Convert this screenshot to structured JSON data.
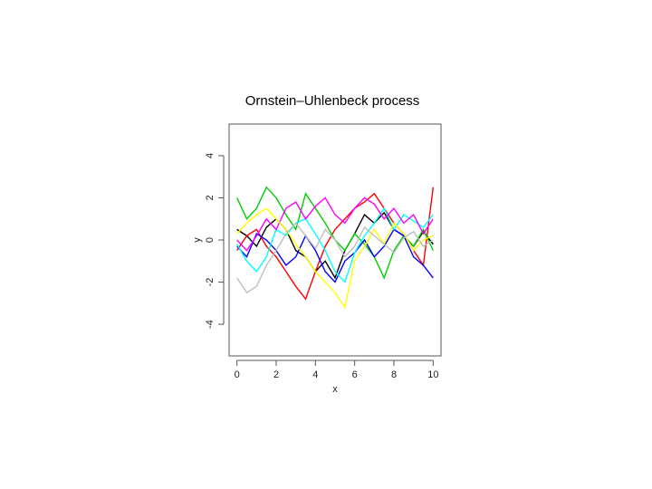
{
  "chart_data": {
    "type": "line",
    "title": "Ornstein–Uhlenbeck process",
    "x_label": "x",
    "y_label": "y",
    "x": [
      0,
      0.5,
      1,
      1.5,
      2,
      2.5,
      3,
      3.5,
      4,
      4.5,
      5,
      5.5,
      6,
      6.5,
      7,
      7.5,
      8,
      8.5,
      9,
      9.5,
      10
    ],
    "series": [
      {
        "color": "#000000",
        "values": [
          0.5,
          0.2,
          -0.3,
          0.6,
          1.0,
          0.5,
          -0.5,
          -0.8,
          -1.5,
          -1.0,
          -1.8,
          -0.5,
          0.3,
          1.2,
          0.8,
          1.3,
          0.5,
          0.2,
          -0.3,
          0.4,
          -0.2
        ]
      },
      {
        "color": "#ff0000",
        "values": [
          -0.5,
          0.2,
          0.5,
          -0.3,
          -0.8,
          -1.5,
          -2.2,
          -2.8,
          -1.5,
          -0.3,
          0.5,
          1.0,
          1.5,
          1.8,
          2.2,
          1.5,
          0.8,
          0.3,
          -0.5,
          -1.2,
          2.5
        ]
      },
      {
        "color": "#00cd00",
        "values": [
          2.0,
          1.0,
          1.5,
          2.5,
          2.0,
          1.2,
          0.5,
          2.2,
          1.5,
          0.8,
          0.0,
          -0.5,
          0.3,
          -0.2,
          -0.8,
          -1.8,
          -0.5,
          0.2,
          -0.3,
          0.5,
          -0.5
        ]
      },
      {
        "color": "#0000ff",
        "values": [
          -0.3,
          -0.8,
          0.3,
          0.0,
          -0.5,
          -1.2,
          -0.8,
          0.2,
          -0.5,
          -1.5,
          -2.0,
          -1.0,
          -0.6,
          0.0,
          -0.8,
          -0.3,
          0.5,
          0.2,
          -0.8,
          -1.2,
          -1.8
        ]
      },
      {
        "color": "#00ffff",
        "values": [
          -0.2,
          -1.0,
          -1.5,
          -0.8,
          0.5,
          0.2,
          0.8,
          1.0,
          0.3,
          -0.5,
          -1.5,
          -2.0,
          -0.6,
          0.2,
          0.8,
          1.5,
          0.5,
          1.2,
          0.9,
          0.6,
          1.2
        ]
      },
      {
        "color": "#ff00ff",
        "values": [
          0.0,
          -0.5,
          0.2,
          1.0,
          0.5,
          1.5,
          1.8,
          1.0,
          1.6,
          2.0,
          1.2,
          0.8,
          1.5,
          2.0,
          1.7,
          1.0,
          1.5,
          0.8,
          1.2,
          0.3,
          1.0
        ]
      },
      {
        "color": "#ffff00",
        "values": [
          0.3,
          0.8,
          1.2,
          1.5,
          1.0,
          0.5,
          -0.2,
          -0.8,
          -1.5,
          -2.0,
          -2.5,
          -3.2,
          -1.0,
          -0.3,
          0.5,
          -0.2,
          0.8,
          0.3,
          -0.5,
          0.0,
          0.2
        ]
      },
      {
        "color": "#bebebe",
        "values": [
          -1.8,
          -2.5,
          -2.2,
          -1.2,
          -0.5,
          0.3,
          0.8,
          0.2,
          -0.4,
          0.5,
          0.0,
          -0.8,
          -0.3,
          0.6,
          0.2,
          -0.2,
          -0.6,
          0.1,
          0.4,
          -0.3,
          0.0
        ]
      }
    ],
    "xlim": [
      -0.4,
      10.4
    ],
    "ylim": [
      -5.5,
      5.5
    ],
    "xticks": [
      0,
      2,
      4,
      6,
      8,
      10
    ],
    "yticks": [
      -4,
      -2,
      0,
      2,
      4
    ]
  }
}
